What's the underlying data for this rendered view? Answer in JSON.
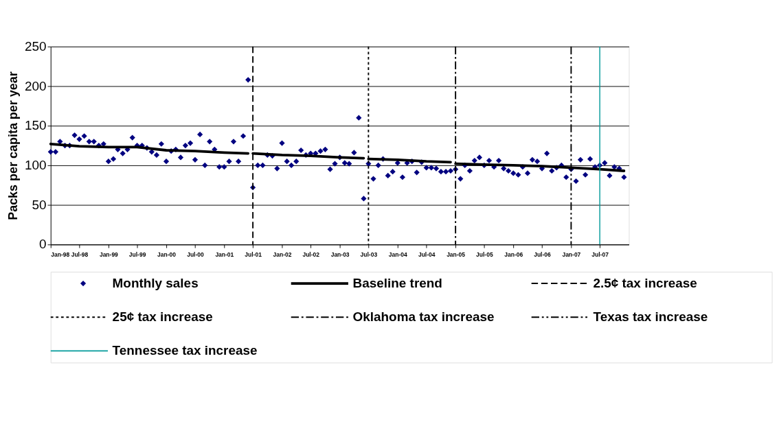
{
  "chart_data": {
    "type": "scatter",
    "ylabel": "Packs per capita per year",
    "ylim": [
      0,
      250
    ],
    "yticks": [
      0,
      50,
      100,
      150,
      200,
      250
    ],
    "grid": "y",
    "legend": "bottom",
    "xlim": [
      "1998-01",
      "2008-01"
    ],
    "xticks": [
      {
        "value": "1998-01",
        "label": "Jan-98"
      },
      {
        "value": "1998-07",
        "label": "Jul-98"
      },
      {
        "value": "1999-01",
        "label": "Jan-99"
      },
      {
        "value": "1999-07",
        "label": "Jul-99"
      },
      {
        "value": "2000-01",
        "label": "Jan-00"
      },
      {
        "value": "2000-07",
        "label": "Jul-00"
      },
      {
        "value": "2001-01",
        "label": "Jan-01"
      },
      {
        "value": "2001-07",
        "label": "Jul-01"
      },
      {
        "value": "2002-01",
        "label": "Jan-02"
      },
      {
        "value": "2002-07",
        "label": "Jul-02"
      },
      {
        "value": "2003-01",
        "label": "Jan-03"
      },
      {
        "value": "2003-07",
        "label": "Jul-03"
      },
      {
        "value": "2004-01",
        "label": "Jan-04"
      },
      {
        "value": "2004-07",
        "label": "Jul-04"
      },
      {
        "value": "2005-01",
        "label": "Jan-05"
      },
      {
        "value": "2005-07",
        "label": "Jul-05"
      },
      {
        "value": "2006-01",
        "label": "Jan-06"
      },
      {
        "value": "2006-07",
        "label": "Jul-06"
      },
      {
        "value": "2007-01",
        "label": "Jan-07"
      },
      {
        "value": "2007-07",
        "label": "Jul-07"
      }
    ],
    "series": [
      {
        "name": "Monthly sales",
        "marker": "diamond",
        "color": "#000080",
        "x": [
          "1998-01",
          "1998-02",
          "1998-03",
          "1998-04",
          "1998-05",
          "1998-06",
          "1998-07",
          "1998-08",
          "1998-09",
          "1998-10",
          "1998-11",
          "1998-12",
          "1999-01",
          "1999-02",
          "1999-03",
          "1999-04",
          "1999-05",
          "1999-06",
          "1999-07",
          "1999-08",
          "1999-09",
          "1999-10",
          "1999-11",
          "1999-12",
          "2000-01",
          "2000-02",
          "2000-03",
          "2000-04",
          "2000-05",
          "2000-06",
          "2000-07",
          "2000-08",
          "2000-09",
          "2000-10",
          "2000-11",
          "2000-12",
          "2001-01",
          "2001-02",
          "2001-03",
          "2001-04",
          "2001-05",
          "2001-06",
          "2001-07",
          "2001-08",
          "2001-09",
          "2001-10",
          "2001-11",
          "2001-12",
          "2002-01",
          "2002-02",
          "2002-03",
          "2002-04",
          "2002-05",
          "2002-06",
          "2002-07",
          "2002-08",
          "2002-09",
          "2002-10",
          "2002-11",
          "2002-12",
          "2003-01",
          "2003-02",
          "2003-03",
          "2003-04",
          "2003-05",
          "2003-06",
          "2003-07",
          "2003-08",
          "2003-09",
          "2003-10",
          "2003-11",
          "2003-12",
          "2004-01",
          "2004-02",
          "2004-03",
          "2004-04",
          "2004-05",
          "2004-06",
          "2004-07",
          "2004-08",
          "2004-09",
          "2004-10",
          "2004-11",
          "2004-12",
          "2005-01",
          "2005-02",
          "2005-03",
          "2005-04",
          "2005-05",
          "2005-06",
          "2005-07",
          "2005-08",
          "2005-09",
          "2005-10",
          "2005-11",
          "2005-12",
          "2006-01",
          "2006-02",
          "2006-03",
          "2006-04",
          "2006-05",
          "2006-06",
          "2006-07",
          "2006-08",
          "2006-09",
          "2006-10",
          "2006-11",
          "2006-12",
          "2007-01",
          "2007-02",
          "2007-03",
          "2007-04",
          "2007-05",
          "2007-06",
          "2007-07",
          "2007-08",
          "2007-09",
          "2007-10",
          "2007-11",
          "2007-12"
        ],
        "values": [
          117,
          117,
          130,
          125,
          125,
          138,
          133,
          137,
          130,
          130,
          125,
          127,
          105,
          108,
          120,
          115,
          120,
          135,
          125,
          125,
          122,
          117,
          113,
          127,
          105,
          118,
          120,
          110,
          125,
          128,
          107,
          139,
          100,
          130,
          120,
          98,
          98,
          105,
          130,
          105,
          137,
          208,
          72,
          100,
          100,
          113,
          112,
          96,
          128,
          105,
          100,
          105,
          119,
          113,
          115,
          115,
          118,
          120,
          95,
          102,
          110,
          103,
          102,
          116,
          160,
          58,
          102,
          83,
          100,
          108,
          87,
          92,
          103,
          85,
          103,
          105,
          91,
          104,
          97,
          97,
          96,
          92,
          92,
          93,
          95,
          83,
          100,
          93,
          106,
          110,
          100,
          106,
          98,
          106,
          96,
          93,
          90,
          88,
          98,
          90,
          107,
          105,
          96,
          115,
          93,
          97,
          100,
          85,
          95,
          80,
          107,
          88,
          108,
          98,
          100,
          103,
          87,
          98,
          96,
          85
        ]
      },
      {
        "name": "Baseline trend",
        "type": "line",
        "color": "#000000",
        "line_style": "solid",
        "x": [
          "1998-01",
          "1998-07",
          "1999-01",
          "1999-07",
          "2000-01",
          "2000-07",
          "2001-01",
          "2001-06"
        ],
        "values": [
          127,
          124,
          123,
          123,
          119,
          118,
          116,
          115
        ]
      },
      {
        "type": "line",
        "color": "#000000",
        "line_style": "solid",
        "x": [
          "2001-07",
          "2002-01",
          "2002-07",
          "2003-01",
          "2003-06"
        ],
        "values": [
          115,
          113,
          112,
          110,
          109
        ]
      },
      {
        "type": "line",
        "color": "#000000",
        "line_style": "solid",
        "x": [
          "2003-07",
          "2004-01",
          "2004-07",
          "2004-12"
        ],
        "values": [
          108,
          107,
          105,
          104
        ]
      },
      {
        "type": "line",
        "color": "#000000",
        "line_style": "solid",
        "x": [
          "2005-01",
          "2005-07",
          "2006-01",
          "2006-07",
          "2007-01",
          "2007-07",
          "2007-12"
        ],
        "values": [
          102,
          101,
          100,
          99,
          97,
          95,
          93
        ]
      }
    ],
    "ref_lines": [
      {
        "axis": "x",
        "value": "2001-07",
        "label": "2.5¢ tax increase",
        "color": "#000000",
        "line_style": "dashed"
      },
      {
        "axis": "x",
        "value": "2003-07",
        "label": "25¢ tax increase",
        "color": "#000000",
        "line_style": "dotted"
      },
      {
        "axis": "x",
        "value": "2005-01",
        "label": "Oklahoma tax increase",
        "color": "#000000",
        "line_style": "dashdot"
      },
      {
        "axis": "x",
        "value": "2007-01",
        "label": "Texas tax increase",
        "color": "#000000",
        "line_style": "dashdotdot"
      },
      {
        "axis": "x",
        "value": "2007-07",
        "label": "Tennessee tax increase",
        "color": "#009999",
        "line_style": "solid"
      }
    ]
  }
}
